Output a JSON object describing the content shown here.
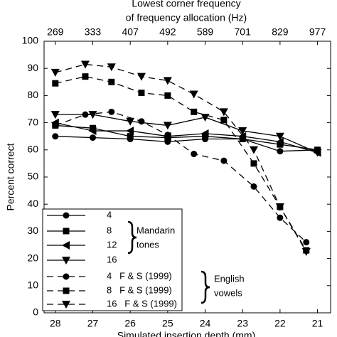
{
  "chart_data": {
    "type": "line",
    "title": [
      "Lowest corner frequency",
      "of frequency allocation (Hz)"
    ],
    "xlabel": "Simulated insertion depth (mm)",
    "ylabel": "Percent correct",
    "xlim": [
      28.3,
      20.65
    ],
    "ylim": [
      0,
      100
    ],
    "xticks": [
      28,
      27,
      26,
      25,
      24,
      23,
      22,
      21
    ],
    "x2ticks": [
      269,
      333,
      407,
      492,
      589,
      701,
      829,
      977
    ],
    "yticks": [
      0,
      10,
      20,
      30,
      40,
      50,
      60,
      70,
      80,
      90,
      100
    ],
    "annotations": [
      [
        "Mandarin",
        "tones"
      ],
      [
        "English",
        "vowels"
      ]
    ],
    "series": [
      {
        "name": "4",
        "color": "#000000",
        "dash": false,
        "marker": "circle",
        "x": [
          28,
          27,
          26,
          25,
          24,
          23,
          22,
          21
        ],
        "values": [
          65,
          64.5,
          64,
          63,
          64,
          64,
          59.5,
          60
        ]
      },
      {
        "name": "8",
        "color": "#000000",
        "dash": false,
        "marker": "square",
        "x": [
          28,
          27,
          26,
          25,
          24,
          23,
          22,
          21
        ],
        "values": [
          69,
          68,
          65,
          64.5,
          65,
          64,
          62,
          60
        ]
      },
      {
        "name": "12",
        "color": "#000000",
        "dash": false,
        "marker": "left",
        "x": [
          28,
          27,
          26,
          25,
          24,
          23,
          22,
          21
        ],
        "values": [
          70,
          67,
          67,
          65,
          66,
          65,
          63,
          59
        ]
      },
      {
        "name": "16",
        "color": "#000000",
        "dash": false,
        "marker": "down",
        "x": [
          28,
          27,
          26,
          25,
          24,
          23,
          22,
          21
        ],
        "values": [
          73,
          73,
          70.5,
          69,
          72,
          67,
          65,
          59
        ]
      },
      {
        "name": "4   F & S (1999)",
        "color": "#000000",
        "dash": true,
        "marker": "circle",
        "x": [
          28,
          27.2,
          26.5,
          25.7,
          25,
          24.3,
          23.5,
          22.7,
          22,
          21.3
        ],
        "values": [
          69,
          73,
          74,
          70.5,
          65.5,
          58.5,
          56,
          46.5,
          35,
          26
        ]
      },
      {
        "name": "8   F & S (1999)",
        "color": "#000000",
        "dash": true,
        "marker": "square",
        "x": [
          28,
          27.2,
          26.5,
          25.7,
          25,
          24.3,
          23.5,
          22.7,
          22,
          21.3
        ],
        "values": [
          84.5,
          87,
          85,
          81,
          80,
          74,
          71,
          55,
          39,
          23
        ]
      },
      {
        "name": "16   F & S (1999)",
        "color": "#000000",
        "dash": true,
        "marker": "down",
        "x": [
          28,
          27.2,
          26.5,
          25.7,
          25,
          24.3,
          23.5,
          22.7,
          22,
          21.3
        ],
        "values": [
          88.5,
          91.5,
          90.5,
          87,
          85.5,
          80.5,
          74,
          60,
          39,
          22.5
        ]
      }
    ]
  }
}
